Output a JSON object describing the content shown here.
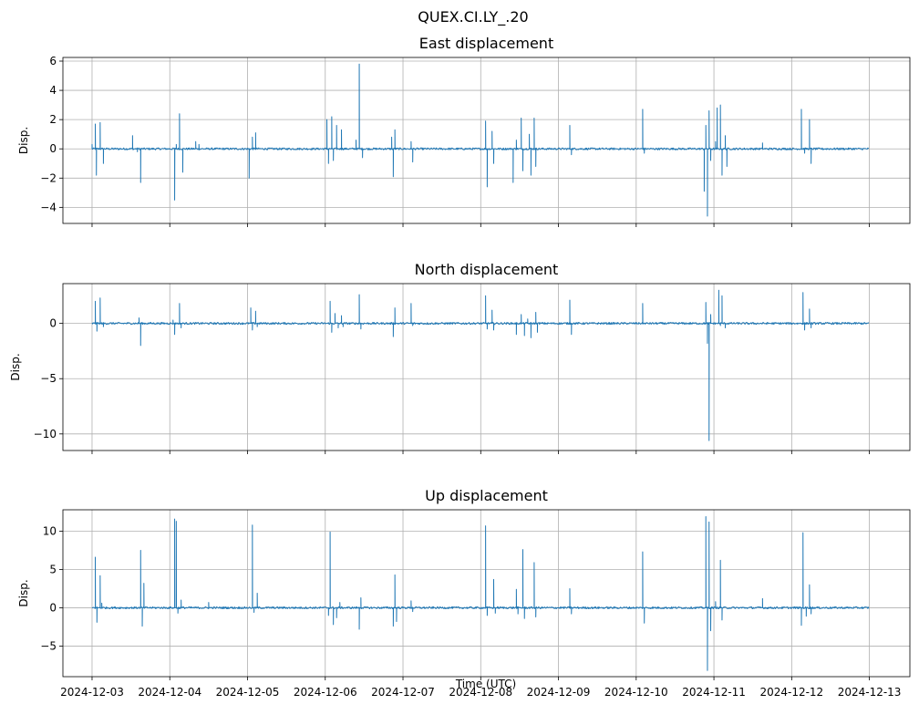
{
  "figure": {
    "title": "QUEX.CI.LY_.20",
    "xlabel": "Time (UTC)"
  },
  "chart_data": [
    {
      "type": "line",
      "title": "East displacement",
      "ylabel": "Disp.",
      "xlim": [
        "2024-12-02T15:00",
        "2024-12-13T12:30"
      ],
      "ylim": [
        -5.1,
        6.25
      ],
      "yticks": [
        -4,
        -2,
        0,
        2,
        4,
        6
      ],
      "grid": true,
      "color": "#1f77b4",
      "spikes": [
        [
          "2024-12-03T00:00",
          0.3
        ],
        [
          "2024-12-03T01:00",
          1.7
        ],
        [
          "2024-12-03T01:20",
          -1.8
        ],
        [
          "2024-12-03T02:30",
          1.8
        ],
        [
          "2024-12-03T03:30",
          -1.0
        ],
        [
          "2024-12-03T12:30",
          0.9
        ],
        [
          "2024-12-03T14:00",
          -0.2
        ],
        [
          "2024-12-03T15:00",
          -2.3
        ],
        [
          "2024-12-04T01:30",
          -3.5
        ],
        [
          "2024-12-04T02:00",
          0.3
        ],
        [
          "2024-12-04T03:00",
          2.4
        ],
        [
          "2024-12-04T04:00",
          -1.6
        ],
        [
          "2024-12-04T08:00",
          0.5
        ],
        [
          "2024-12-04T09:00",
          0.3
        ],
        [
          "2024-12-05T00:30",
          -2.0
        ],
        [
          "2024-12-05T01:30",
          0.8
        ],
        [
          "2024-12-05T02:30",
          1.1
        ],
        [
          "2024-12-06T00:30",
          2.0
        ],
        [
          "2024-12-06T01:00",
          -1.0
        ],
        [
          "2024-12-06T02:00",
          2.2
        ],
        [
          "2024-12-06T02:30",
          -0.8
        ],
        [
          "2024-12-06T03:30",
          1.6
        ],
        [
          "2024-12-06T05:00",
          1.3
        ],
        [
          "2024-12-06T09:30",
          0.6
        ],
        [
          "2024-12-06T10:30",
          5.8
        ],
        [
          "2024-12-06T11:30",
          -0.6
        ],
        [
          "2024-12-06T20:30",
          0.8
        ],
        [
          "2024-12-06T21:00",
          -1.9
        ],
        [
          "2024-12-06T21:30",
          1.3
        ],
        [
          "2024-12-07T02:30",
          0.5
        ],
        [
          "2024-12-07T03:00",
          -0.9
        ],
        [
          "2024-12-08T01:30",
          1.9
        ],
        [
          "2024-12-08T02:00",
          -2.6
        ],
        [
          "2024-12-08T03:30",
          1.2
        ],
        [
          "2024-12-08T04:00",
          -1.0
        ],
        [
          "2024-12-08T10:00",
          -2.3
        ],
        [
          "2024-12-08T11:00",
          0.6
        ],
        [
          "2024-12-08T12:30",
          2.1
        ],
        [
          "2024-12-08T13:00",
          -1.5
        ],
        [
          "2024-12-08T15:00",
          1.0
        ],
        [
          "2024-12-08T15:30",
          -1.8
        ],
        [
          "2024-12-08T16:30",
          2.1
        ],
        [
          "2024-12-08T17:00",
          -1.2
        ],
        [
          "2024-12-09T03:30",
          1.6
        ],
        [
          "2024-12-09T04:00",
          -0.4
        ],
        [
          "2024-12-10T02:00",
          2.7
        ],
        [
          "2024-12-10T02:30",
          -0.3
        ],
        [
          "2024-12-10T21:00",
          -2.9
        ],
        [
          "2024-12-10T21:30",
          1.6
        ],
        [
          "2024-12-10T22:00",
          -4.6
        ],
        [
          "2024-12-10T22:30",
          2.6
        ],
        [
          "2024-12-10T23:00",
          -0.8
        ],
        [
          "2024-12-11T00:30",
          0.5
        ],
        [
          "2024-12-11T01:00",
          2.8
        ],
        [
          "2024-12-11T02:00",
          3.0
        ],
        [
          "2024-12-11T02:30",
          -1.8
        ],
        [
          "2024-12-11T03:30",
          0.9
        ],
        [
          "2024-12-11T04:00",
          -1.2
        ],
        [
          "2024-12-11T15:00",
          0.4
        ],
        [
          "2024-12-12T03:00",
          2.7
        ],
        [
          "2024-12-12T04:00",
          -0.3
        ],
        [
          "2024-12-12T05:30",
          2.0
        ],
        [
          "2024-12-12T06:00",
          -1.0
        ]
      ]
    },
    {
      "type": "line",
      "title": "North displacement",
      "ylabel": "Disp.",
      "xlim": [
        "2024-12-02T15:00",
        "2024-12-13T12:30"
      ],
      "ylim": [
        -11.5,
        3.6
      ],
      "yticks": [
        -10,
        -5,
        0
      ],
      "grid": true,
      "color": "#1f77b4",
      "spikes": [
        [
          "2024-12-03T01:00",
          2.0
        ],
        [
          "2024-12-03T01:30",
          -0.7
        ],
        [
          "2024-12-03T02:30",
          2.3
        ],
        [
          "2024-12-03T03:30",
          -0.3
        ],
        [
          "2024-12-03T14:30",
          0.5
        ],
        [
          "2024-12-03T15:00",
          -2.0
        ],
        [
          "2024-12-04T01:00",
          0.3
        ],
        [
          "2024-12-04T01:30",
          -1.0
        ],
        [
          "2024-12-04T03:00",
          1.8
        ],
        [
          "2024-12-04T03:30",
          -0.4
        ],
        [
          "2024-12-05T01:00",
          1.4
        ],
        [
          "2024-12-05T01:30",
          -0.6
        ],
        [
          "2024-12-05T02:30",
          1.1
        ],
        [
          "2024-12-05T03:00",
          -0.3
        ],
        [
          "2024-12-06T01:30",
          2.0
        ],
        [
          "2024-12-06T02:00",
          -0.8
        ],
        [
          "2024-12-06T03:00",
          0.9
        ],
        [
          "2024-12-06T04:00",
          -0.4
        ],
        [
          "2024-12-06T05:00",
          0.7
        ],
        [
          "2024-12-06T05:30",
          -0.3
        ],
        [
          "2024-12-06T10:30",
          2.6
        ],
        [
          "2024-12-06T11:00",
          -0.5
        ],
        [
          "2024-12-06T21:00",
          -1.2
        ],
        [
          "2024-12-06T21:30",
          1.4
        ],
        [
          "2024-12-07T02:30",
          1.8
        ],
        [
          "2024-12-07T03:00",
          -0.2
        ],
        [
          "2024-12-08T01:30",
          2.5
        ],
        [
          "2024-12-08T02:00",
          -0.5
        ],
        [
          "2024-12-08T03:30",
          1.2
        ],
        [
          "2024-12-08T04:00",
          -0.6
        ],
        [
          "2024-12-08T11:00",
          -1.0
        ],
        [
          "2024-12-08T12:30",
          0.8
        ],
        [
          "2024-12-08T13:30",
          -1.1
        ],
        [
          "2024-12-08T14:30",
          0.4
        ],
        [
          "2024-12-08T15:30",
          -1.3
        ],
        [
          "2024-12-08T17:00",
          1.0
        ],
        [
          "2024-12-08T17:30",
          -0.8
        ],
        [
          "2024-12-09T03:30",
          2.1
        ],
        [
          "2024-12-09T04:00",
          -1.0
        ],
        [
          "2024-12-10T02:00",
          1.8
        ],
        [
          "2024-12-10T21:30",
          1.9
        ],
        [
          "2024-12-10T22:00",
          -1.8
        ],
        [
          "2024-12-10T22:30",
          -10.6
        ],
        [
          "2024-12-10T23:00",
          0.8
        ],
        [
          "2024-12-11T01:30",
          3.0
        ],
        [
          "2024-12-11T02:00",
          -0.2
        ],
        [
          "2024-12-11T02:30",
          2.5
        ],
        [
          "2024-12-11T03:30",
          -0.4
        ],
        [
          "2024-12-12T03:30",
          2.8
        ],
        [
          "2024-12-12T04:00",
          -0.6
        ],
        [
          "2024-12-12T05:30",
          1.3
        ],
        [
          "2024-12-12T06:00",
          -0.4
        ]
      ]
    },
    {
      "type": "line",
      "title": "Up displacement",
      "ylabel": "Disp.",
      "xlim": [
        "2024-12-02T15:00",
        "2024-12-13T12:30"
      ],
      "ylim": [
        -9.0,
        12.8
      ],
      "yticks": [
        -5,
        0,
        5,
        10
      ],
      "grid": true,
      "color": "#1f77b4",
      "spikes": [
        [
          "2024-12-03T01:00",
          6.6
        ],
        [
          "2024-12-03T01:30",
          -1.9
        ],
        [
          "2024-12-03T02:30",
          4.2
        ],
        [
          "2024-12-03T03:00",
          0.6
        ],
        [
          "2024-12-03T15:00",
          7.5
        ],
        [
          "2024-12-03T15:30",
          -2.4
        ],
        [
          "2024-12-03T16:00",
          3.2
        ],
        [
          "2024-12-04T01:30",
          11.6
        ],
        [
          "2024-12-04T02:00",
          11.3
        ],
        [
          "2024-12-04T02:30",
          -0.7
        ],
        [
          "2024-12-04T03:30",
          1.0
        ],
        [
          "2024-12-04T12:00",
          0.7
        ],
        [
          "2024-12-05T01:30",
          10.8
        ],
        [
          "2024-12-05T02:00",
          -0.6
        ],
        [
          "2024-12-05T03:00",
          1.9
        ],
        [
          "2024-12-06T01:00",
          -1.0
        ],
        [
          "2024-12-06T01:30",
          9.9
        ],
        [
          "2024-12-06T02:30",
          -2.2
        ],
        [
          "2024-12-06T03:30",
          -1.3
        ],
        [
          "2024-12-06T04:30",
          0.7
        ],
        [
          "2024-12-06T10:30",
          -2.8
        ],
        [
          "2024-12-06T11:00",
          1.3
        ],
        [
          "2024-12-06T21:00",
          -2.4
        ],
        [
          "2024-12-06T21:30",
          4.3
        ],
        [
          "2024-12-06T22:00",
          -1.8
        ],
        [
          "2024-12-07T02:30",
          0.9
        ],
        [
          "2024-12-07T03:00",
          -0.5
        ],
        [
          "2024-12-08T01:30",
          10.7
        ],
        [
          "2024-12-08T02:00",
          -1.0
        ],
        [
          "2024-12-08T04:00",
          3.7
        ],
        [
          "2024-12-08T04:30",
          -0.7
        ],
        [
          "2024-12-08T11:00",
          2.4
        ],
        [
          "2024-12-08T11:30",
          -0.8
        ],
        [
          "2024-12-08T13:00",
          7.6
        ],
        [
          "2024-12-08T13:30",
          -1.4
        ],
        [
          "2024-12-08T16:30",
          5.9
        ],
        [
          "2024-12-08T17:00",
          -1.2
        ],
        [
          "2024-12-09T03:30",
          2.5
        ],
        [
          "2024-12-09T04:00",
          -0.8
        ],
        [
          "2024-12-10T02:00",
          7.3
        ],
        [
          "2024-12-10T02:30",
          -2.0
        ],
        [
          "2024-12-10T21:30",
          11.9
        ],
        [
          "2024-12-10T22:00",
          -8.2
        ],
        [
          "2024-12-10T22:30",
          11.2
        ],
        [
          "2024-12-10T23:00",
          -3.0
        ],
        [
          "2024-12-11T00:30",
          0.8
        ],
        [
          "2024-12-11T02:00",
          6.2
        ],
        [
          "2024-12-11T02:30",
          -1.6
        ],
        [
          "2024-12-11T15:00",
          1.2
        ],
        [
          "2024-12-12T03:00",
          -2.3
        ],
        [
          "2024-12-12T03:30",
          9.8
        ],
        [
          "2024-12-12T04:30",
          -1.1
        ],
        [
          "2024-12-12T05:30",
          3.0
        ],
        [
          "2024-12-12T06:00",
          -0.8
        ]
      ]
    }
  ],
  "x_ticks": [
    "2024-12-03",
    "2024-12-04",
    "2024-12-05",
    "2024-12-06",
    "2024-12-07",
    "2024-12-08",
    "2024-12-09",
    "2024-12-10",
    "2024-12-11",
    "2024-12-12",
    "2024-12-13"
  ]
}
